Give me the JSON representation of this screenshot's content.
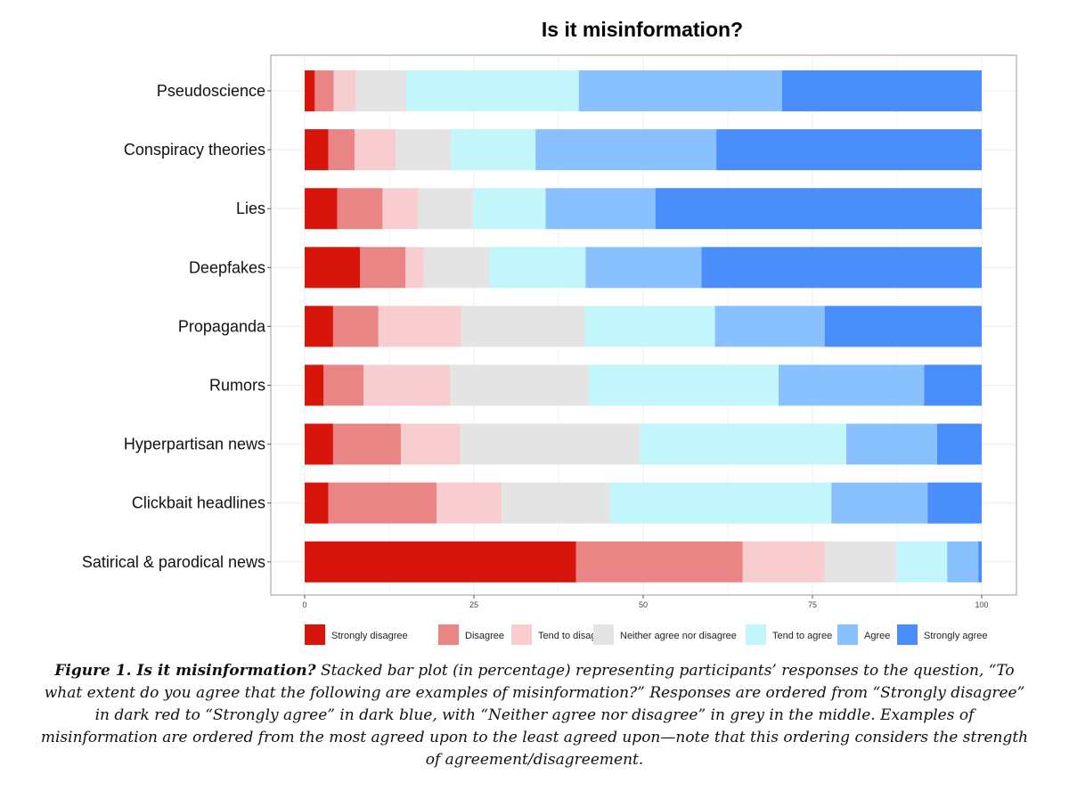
{
  "chart_data": {
    "type": "bar",
    "orientation": "horizontal",
    "stacked": true,
    "title": "Is it misinformation?",
    "xlim": [
      0,
      100
    ],
    "x_ticks": [
      "0",
      "25",
      "50",
      "75",
      "100"
    ],
    "grid": true,
    "legend_position": "bottom",
    "categories": [
      "Pseudoscience",
      "Conspiracy theories",
      "Lies",
      "Deepfakes",
      "Propaganda",
      "Rumors",
      "Hyperpartisan news",
      "Clickbait headlines",
      "Satirical & parodical news"
    ],
    "series": [
      {
        "name": "Strongly disagree",
        "color": "#d7150b",
        "values": [
          1.5,
          3.5,
          4.8,
          8.2,
          4.2,
          2.8,
          4.2,
          3.5,
          40.1
        ]
      },
      {
        "name": "Disagree",
        "color": "#e98585",
        "values": [
          2.8,
          3.9,
          6.7,
          6.7,
          6.7,
          5.9,
          10.0,
          16.0,
          24.6
        ]
      },
      {
        "name": "Tend to disagree",
        "color": "#f7cdd0",
        "values": [
          3.3,
          6.1,
          5.2,
          2.7,
          12.2,
          12.8,
          8.8,
          9.6,
          12.1
        ]
      },
      {
        "name": "Neither agree nor disagree",
        "color": "#e4e4e4",
        "values": [
          7.4,
          8.1,
          8.2,
          9.7,
          18.3,
          20.5,
          26.5,
          16.0,
          10.6
        ]
      },
      {
        "name": "Tend to agree",
        "color": "#c2f6fb",
        "values": [
          25.5,
          12.5,
          10.7,
          14.2,
          19.2,
          28.0,
          30.5,
          32.7,
          7.5
        ]
      },
      {
        "name": "Agree",
        "color": "#88c1fd",
        "values": [
          30.0,
          26.7,
          16.2,
          17.1,
          16.2,
          21.5,
          13.4,
          14.2,
          4.6
        ]
      },
      {
        "name": "Strongly agree",
        "color": "#4a8efc",
        "values": [
          29.5,
          39.2,
          48.2,
          41.4,
          23.2,
          8.5,
          6.6,
          8.0,
          0.5
        ]
      }
    ]
  },
  "caption": {
    "lead": "Figure 1. Is it misinformation?",
    "body": " Stacked bar plot (in percentage) representing participants’ responses to the question, “To what extent do you agree that the following are examples of misinformation?” Responses are ordered from “Strongly disagree” in dark red to “Strongly agree” in dark blue, with “Neither agree nor disagree” in grey in the middle. Examples of misinformation are ordered from the most agreed upon to the least agreed upon—note that this ordering considers the strength of agreement/disagreement."
  }
}
